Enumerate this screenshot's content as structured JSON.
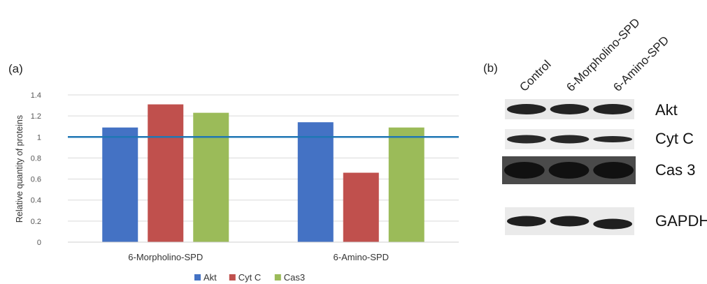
{
  "panel_a_label": "(a)",
  "panel_b_label": "(b)",
  "chart_data": {
    "type": "bar",
    "categories": [
      "6-Morpholino-SPD",
      "6-Amino-SPD"
    ],
    "series": [
      {
        "name": "Akt",
        "values": [
          1.09,
          1.14
        ],
        "color": "#4472C4"
      },
      {
        "name": "Cyt C",
        "values": [
          1.31,
          0.66
        ],
        "color": "#C0504D"
      },
      {
        "name": "Cas3",
        "values": [
          1.23,
          1.09
        ],
        "color": "#9BBB59"
      }
    ],
    "ylabel": "Relative quantity of proteins",
    "xlabel": "",
    "ylim": [
      0,
      1.4
    ],
    "yticks": [
      "0",
      "0.2",
      "0.4",
      "0.6",
      "0.8",
      "1",
      "1.2",
      "1.4"
    ],
    "reference_line": {
      "value": 1,
      "color": "#1F77B4"
    },
    "grid": true,
    "legend": "bottom"
  },
  "blot": {
    "lanes": [
      "Control",
      "6-Morpholino-SPD",
      "6-Amino-SPD"
    ],
    "rows": [
      "Akt",
      "Cyt C",
      "Cas 3",
      "GAPDH"
    ]
  }
}
